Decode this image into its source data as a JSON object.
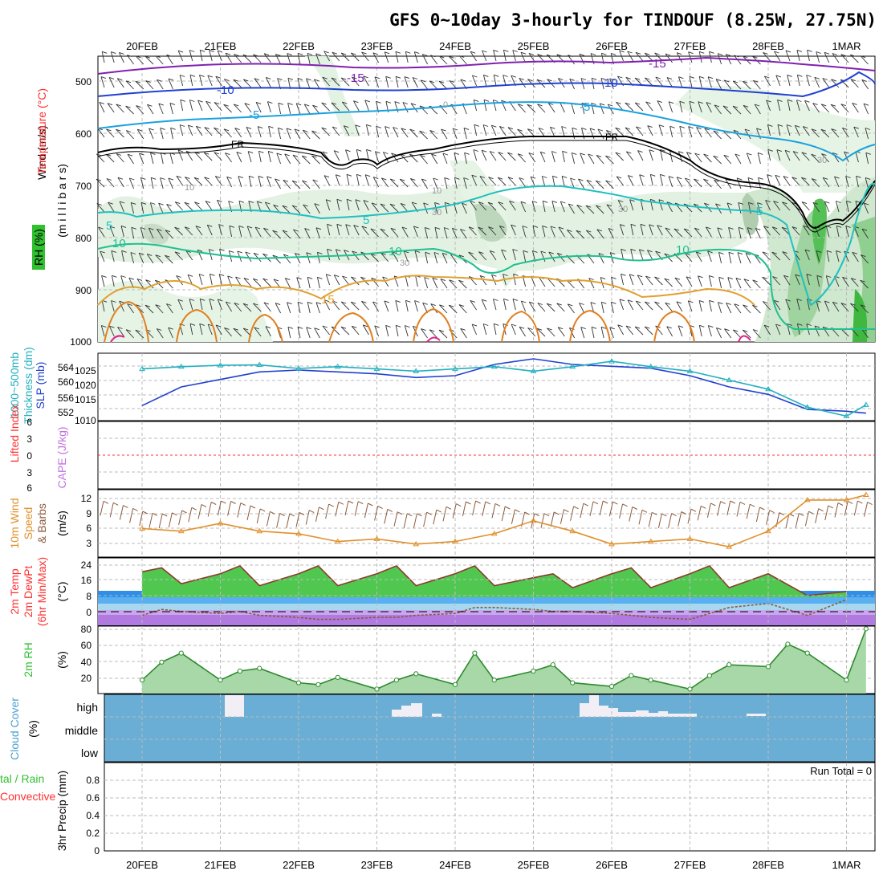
{
  "title": "GFS 0~10day 3-hourly for TINDOUF (8.25W, 27.75N)",
  "dates": [
    "20FEB",
    "21FEB",
    "22FEB",
    "23FEB",
    "24FEB",
    "25FEB",
    "26FEB",
    "27FEB",
    "28FEB",
    "1MAR"
  ],
  "colors": {
    "wind": "#000000",
    "temp": "#ff3030",
    "rh": "#30c030",
    "slp": "#2040d0",
    "thick": "#20b0c0",
    "li": "#ff3030",
    "cape": "#c070e0",
    "wind10": "#e0902c",
    "barb10": "#8b5a3c",
    "t2m": "#ff3030",
    "dew": "#00c000",
    "rh2": "#30c030",
    "cloud": "#4aa0d0",
    "precip_total": "#30c030",
    "precip_conv": "#ff3030"
  },
  "panels": {
    "upper": {
      "ylabel_wind": "Wind (m/s)",
      "ylabel_temp": "Temperature (°C)",
      "ylabel_rh": "RH (%)",
      "ylabel_pres": "(m i l l i b a r s)",
      "yticks": [
        "500",
        "600",
        "700",
        "800",
        "900",
        "1000"
      ]
    },
    "slp": {
      "ylabel_thick": "Thickness (dm)",
      "ylabel_thick2": "1000~500mb",
      "ylabel_slp": "SLP (mb)",
      "left_ticks": [
        "564",
        "560",
        "556",
        "552"
      ],
      "right_ticks": [
        "1025",
        "1020",
        "1015",
        "1010"
      ]
    },
    "stab": {
      "ylabel_li": "Lifted Index",
      "ylabel_cape": "CAPE (J/kg)",
      "ticks": [
        "6",
        "3",
        "0",
        "3",
        "6"
      ]
    },
    "wind10": {
      "ylabel1": "10m Wind",
      "ylabel2": "Speed",
      "ylabel3": "& Barbs",
      "ylabel_unit": "(m/s)",
      "ticks": [
        "12",
        "9",
        "6",
        "3"
      ]
    },
    "temp2m": {
      "ylabel1": "2m Temp",
      "ylabel2": "2m DewPt",
      "ylabel3": "(6hr Min/Max)",
      "ylabel_unit": "(°C)",
      "ticks": [
        "24",
        "16",
        "8",
        "0"
      ]
    },
    "rh2m": {
      "ylabel": "2m RH",
      "ylabel_unit": "(%)",
      "ticks": [
        "80",
        "60",
        "40",
        "20"
      ]
    },
    "cloud": {
      "ylabel": "Cloud Cover",
      "ylabel_unit": "(%)",
      "levels": [
        "high",
        "middle",
        "low"
      ]
    },
    "precip": {
      "ylabel": "3hr Precip (mm)",
      "legend_total": "tal / Rain",
      "legend_conv": "Convective",
      "run_total": "Run Total = 0",
      "ticks": [
        "0.8",
        "0.6",
        "0.4",
        "0.2",
        "0"
      ]
    }
  },
  "contour_labels": {
    "temp": [
      "-15",
      "-10",
      "-5",
      "FR",
      "5",
      "10",
      "15",
      "-15",
      "-10",
      "-5",
      "FR",
      "5",
      "10"
    ],
    "rh": [
      "10",
      "10",
      "30",
      "30",
      "30",
      "0",
      "30"
    ]
  },
  "chart_data": [
    {
      "type": "line",
      "title": "SLP (mb)",
      "x": [
        "20FEB 00",
        "20FEB 12",
        "21FEB 00",
        "21FEB 12",
        "22FEB 00",
        "22FEB 12",
        "23FEB 00",
        "23FEB 12",
        "24FEB 00",
        "24FEB 12",
        "25FEB 00",
        "25FEB 12",
        "26FEB 00",
        "26FEB 12",
        "27FEB 00",
        "27FEB 12",
        "28FEB 00",
        "28FEB 12",
        "1MAR 00",
        "1MAR 06"
      ],
      "series": [
        {
          "name": "SLP (mb)",
          "values": [
            1014,
            1019,
            1021,
            1023,
            1023.5,
            1023,
            1022.5,
            1021.5,
            1022,
            1025,
            1026.5,
            1025,
            1024.5,
            1024,
            1022,
            1019,
            1017,
            1013,
            1012.5,
            1012
          ]
        },
        {
          "name": "Thickness (dm)",
          "values": [
            562.5,
            563,
            563.3,
            563.4,
            562.6,
            563,
            562.5,
            562,
            562.5,
            563,
            562,
            563,
            564.2,
            563,
            562,
            560,
            558,
            554,
            552,
            554.5
          ]
        }
      ],
      "ylim_left": [
        551,
        566
      ],
      "ylim_right": [
        1010,
        1028
      ]
    },
    {
      "type": "line",
      "title": "10m Wind Speed (m/s)",
      "x": [
        "20FEB 00",
        "20FEB 12",
        "21FEB 00",
        "21FEB 12",
        "22FEB 00",
        "22FEB 12",
        "23FEB 00",
        "23FEB 12",
        "24FEB 00",
        "24FEB 12",
        "25FEB 00",
        "25FEB 12",
        "26FEB 00",
        "26FEB 12",
        "27FEB 00",
        "27FEB 12",
        "28FEB 00",
        "28FEB 12",
        "1MAR 00",
        "1MAR 06"
      ],
      "series": [
        {
          "name": "10m Wind",
          "values": [
            5.5,
            5,
            6.5,
            5,
            4.5,
            3,
            3.5,
            2.5,
            3,
            4.5,
            7,
            5,
            2.5,
            3,
            3.5,
            2,
            5,
            11,
            11,
            12
          ]
        }
      ],
      "ylim": [
        0,
        13
      ]
    },
    {
      "type": "area",
      "title": "2m Temp (°C)",
      "x": [
        "20FEB 00",
        "20FEB 06",
        "20FEB 12",
        "21FEB 00",
        "21FEB 06",
        "21FEB 12",
        "22FEB 00",
        "22FEB 06",
        "22FEB 12",
        "23FEB 00",
        "23FEB 06",
        "23FEB 12",
        "24FEB 00",
        "24FEB 06",
        "24FEB 12",
        "25FEB 00",
        "25FEB 06",
        "25FEB 12",
        "26FEB 00",
        "26FEB 06",
        "26FEB 12",
        "27FEB 00",
        "27FEB 06",
        "27FEB 12",
        "28FEB 00",
        "28FEB 12",
        "1MAR 00"
      ],
      "series": [
        {
          "name": "2m Temp",
          "values": [
            21,
            23,
            15,
            20,
            24,
            14,
            20,
            24,
            14,
            20,
            24,
            14,
            20,
            24,
            14,
            18,
            20,
            13,
            20,
            23,
            13,
            20,
            24,
            13,
            20,
            9,
            11
          ]
        },
        {
          "name": "2m DewPt",
          "values": [
            -1,
            2,
            1,
            0,
            1,
            -1,
            -2,
            -3,
            -3,
            -2,
            -2,
            -1,
            0,
            3,
            3,
            2,
            1,
            1,
            0,
            -1,
            -2,
            -3,
            0,
            3,
            5,
            -1,
            7
          ]
        }
      ],
      "ylim": [
        -6,
        28
      ]
    },
    {
      "type": "area",
      "title": "2m RH (%)",
      "x": [
        "20FEB 00",
        "20FEB 06",
        "20FEB 12",
        "21FEB 00",
        "21FEB 06",
        "21FEB 12",
        "22FEB 00",
        "22FEB 06",
        "22FEB 12",
        "23FEB 00",
        "23FEB 06",
        "23FEB 12",
        "24FEB 00",
        "24FEB 06",
        "24FEB 12",
        "25FEB 00",
        "25FEB 06",
        "25FEB 12",
        "26FEB 00",
        "26FEB 06",
        "26FEB 12",
        "27FEB 00",
        "27FEB 06",
        "27FEB 12",
        "28FEB 00",
        "28FEB 06",
        "28FEB 12",
        "1MAR 00",
        "1MAR 06"
      ],
      "series": [
        {
          "name": "2m RH",
          "values": [
            25,
            45,
            55,
            25,
            35,
            38,
            22,
            20,
            28,
            15,
            25,
            32,
            20,
            55,
            25,
            35,
            42,
            22,
            18,
            30,
            25,
            15,
            30,
            42,
            40,
            65,
            55,
            25,
            82
          ]
        }
      ],
      "ylim": [
        10,
        85
      ]
    }
  ]
}
